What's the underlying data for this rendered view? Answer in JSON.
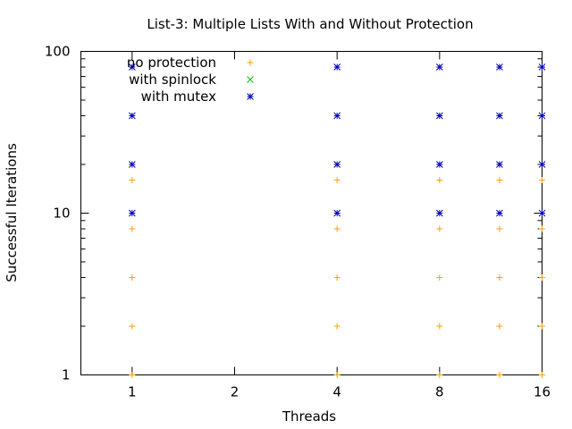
{
  "chart_data": {
    "type": "scatter",
    "title": "List-3: Multiple Lists With and Without Protection",
    "xlabel": "Threads",
    "ylabel": "Successful Iterations",
    "xscale": "log2",
    "yscale": "log10",
    "xlim": [
      0.7071,
      16
    ],
    "ylim": [
      1,
      100
    ],
    "xticks": [
      1,
      2,
      4,
      8,
      16
    ],
    "xtick_labels": [
      "1",
      "2",
      "4",
      "8",
      "16"
    ],
    "yticks": [
      1,
      10,
      100
    ],
    "ytick_labels": [
      "1",
      "10",
      "100"
    ],
    "legend_position": "top-left",
    "series": [
      {
        "name": "no protection",
        "marker": "plus",
        "color": "#ff9f00",
        "points": [
          {
            "x": 1,
            "y": [
              1,
              2,
              4,
              8,
              16
            ]
          },
          {
            "x": 4,
            "y": [
              1,
              2,
              4,
              8,
              16
            ]
          },
          {
            "x": 8,
            "y": [
              1,
              2,
              4,
              8,
              16
            ]
          },
          {
            "x": 12,
            "y": [
              1,
              2,
              4,
              8,
              16
            ]
          },
          {
            "x": 16,
            "y": [
              1,
              2,
              4,
              8,
              16
            ]
          }
        ]
      },
      {
        "name": "with spinlock",
        "marker": "cross",
        "color": "#00c000",
        "points": []
      },
      {
        "name": "with mutex",
        "marker": "star",
        "color": "#0000c0",
        "points": [
          {
            "x": 1,
            "y": [
              10,
              20,
              40,
              80
            ]
          },
          {
            "x": 4,
            "y": [
              10,
              20,
              40,
              80
            ]
          },
          {
            "x": 8,
            "y": [
              10,
              20,
              40,
              80
            ]
          },
          {
            "x": 12,
            "y": [
              10,
              20,
              40,
              80
            ]
          },
          {
            "x": 16,
            "y": [
              10,
              20,
              40,
              80
            ]
          }
        ]
      }
    ]
  }
}
